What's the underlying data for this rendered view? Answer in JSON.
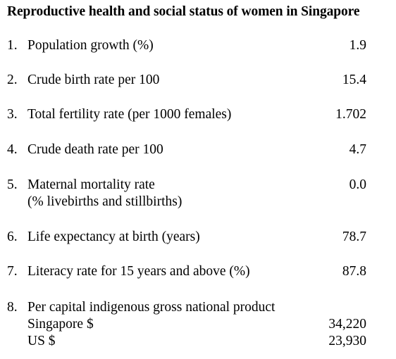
{
  "title": "Reproductive health and social status of women in Singapore",
  "rows": [
    {
      "num": "1.",
      "label": "Population growth (%)",
      "value": "1.9"
    },
    {
      "num": "2.",
      "label": "Crude birth rate per 100",
      "value": "15.4"
    },
    {
      "num": "3.",
      "label": "Total fertility rate (per 1000 females)",
      "value": "1.702"
    },
    {
      "num": "4.",
      "label": "Crude death rate per 100",
      "value": "4.7"
    },
    {
      "num": "5.",
      "label": "Maternal mortality rate",
      "label2": "(% livebirths and stillbirths)",
      "value": "0.0"
    },
    {
      "num": "6.",
      "label": "Life expectancy at birth (years)",
      "value": "78.7"
    },
    {
      "num": "7.",
      "label": "Literacy rate for 15 years and above (%)",
      "value": "87.8"
    },
    {
      "num": "8.",
      "label": "Per capital indigenous gross national product",
      "sub": [
        {
          "label": "Singapore $",
          "value": "34,220"
        },
        {
          "label": "US $",
          "value": "23,930"
        }
      ]
    }
  ]
}
